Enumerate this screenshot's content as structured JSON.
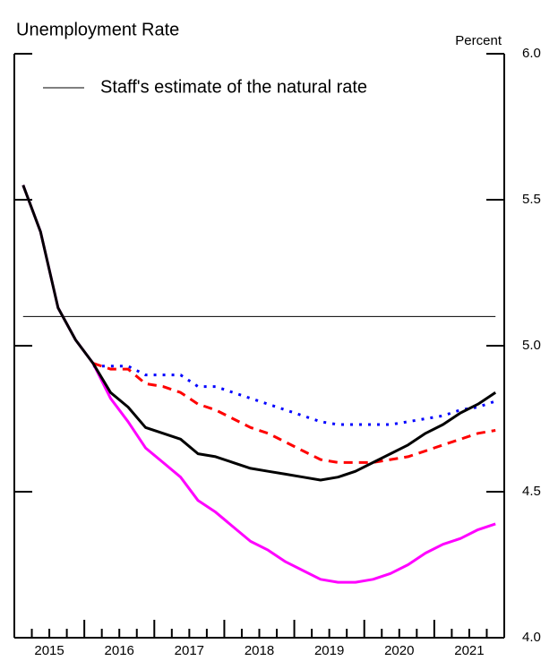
{
  "chart_data": {
    "type": "line",
    "title": "Unemployment Rate",
    "y_label": "Percent",
    "xlim": [
      2015,
      2022
    ],
    "xticks": [
      {
        "value": 2015.5,
        "label": "2015"
      },
      {
        "value": 2016.5,
        "label": "2016"
      },
      {
        "value": 2017.5,
        "label": "2017"
      },
      {
        "value": 2018.5,
        "label": "2018"
      },
      {
        "value": 2019.5,
        "label": "2019"
      },
      {
        "value": 2020.5,
        "label": "2020"
      },
      {
        "value": 2021.5,
        "label": "2021"
      }
    ],
    "ylim": [
      4,
      6
    ],
    "yticks": [
      {
        "value": 4,
        "label": "4.0"
      },
      4.5,
      {
        "value": 5,
        "label": "5.0"
      },
      5.5,
      {
        "value": 6,
        "label": "6.0"
      }
    ],
    "x": [
      2015.125,
      2015.375,
      2015.625,
      2015.875,
      2016.125,
      2016.375,
      2016.625,
      2016.875,
      2017.125,
      2017.375,
      2017.625,
      2017.875,
      2018.125,
      2018.375,
      2018.625,
      2018.875,
      2019.125,
      2019.375,
      2019.625,
      2019.875,
      2020.125,
      2020.375,
      2020.625,
      2020.875,
      2021.125,
      2021.375,
      2021.625,
      2021.875
    ],
    "series": [
      {
        "color": "#0000ff",
        "style": "dotted",
        "values": [
          null,
          null,
          null,
          null,
          4.93,
          4.93,
          4.93,
          4.9,
          4.9,
          4.9,
          4.86,
          4.86,
          4.84,
          4.82,
          4.8,
          4.78,
          4.76,
          4.74,
          4.73,
          4.73,
          4.73,
          4.73,
          4.74,
          4.75,
          4.76,
          4.78,
          4.79,
          4.81
        ]
      },
      {
        "color": "#ff0000",
        "style": "dashed",
        "values": [
          null,
          null,
          null,
          null,
          4.94,
          4.92,
          4.92,
          4.87,
          4.86,
          4.84,
          4.8,
          4.78,
          4.75,
          4.72,
          4.7,
          4.67,
          4.64,
          4.61,
          4.6,
          4.6,
          4.6,
          4.61,
          4.62,
          4.64,
          4.66,
          4.68,
          4.7,
          4.71
        ]
      },
      {
        "color": "#ff00ff",
        "style": "solid",
        "values": [
          5.55,
          5.39,
          5.13,
          5.02,
          4.94,
          4.82,
          4.74,
          4.65,
          4.6,
          4.55,
          4.47,
          4.43,
          4.38,
          4.33,
          4.3,
          4.26,
          4.23,
          4.2,
          4.19,
          4.19,
          4.2,
          4.22,
          4.25,
          4.29,
          4.32,
          4.34,
          4.37,
          4.39
        ]
      },
      {
        "color": "#000000",
        "style": "solid",
        "values": [
          5.55,
          5.39,
          5.13,
          5.02,
          4.94,
          4.84,
          4.79,
          4.72,
          4.7,
          4.68,
          4.63,
          4.62,
          4.6,
          4.58,
          4.57,
          4.56,
          4.55,
          4.54,
          4.55,
          4.57,
          4.6,
          4.63,
          4.66,
          4.7,
          4.73,
          4.77,
          4.8,
          4.84
        ]
      }
    ],
    "reference_lines": [
      {
        "name": "Staff's estimate of the natural rate",
        "value": 5.1,
        "color": "#000000"
      }
    ]
  }
}
